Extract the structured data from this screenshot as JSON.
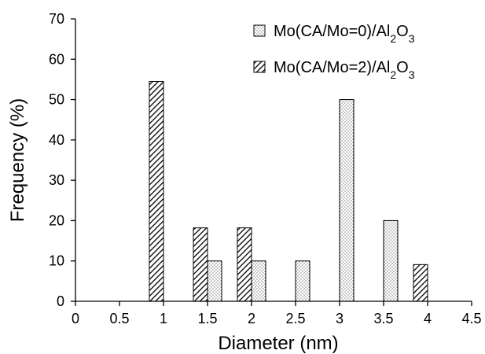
{
  "chart_data": {
    "type": "bar",
    "xlabel": "Diameter (nm)",
    "ylabel": "Frequency (%)",
    "xlim": [
      0,
      4.5
    ],
    "ylim": [
      0,
      70
    ],
    "x_ticks": [
      "0",
      "0.5",
      "1",
      "1.5",
      "2",
      "2.5",
      "3",
      "3.5",
      "4",
      "4.5"
    ],
    "y_ticks": [
      "0",
      "10",
      "20",
      "30",
      "40",
      "50",
      "60",
      "70"
    ],
    "grid": false,
    "legend_position": "top-right",
    "series": [
      {
        "name_parts": [
          "Mo(CA/Mo=0)/Al",
          "2",
          "O",
          "3"
        ],
        "pattern": "dots",
        "x": [
          1.5,
          2.0,
          2.5,
          3.0,
          3.5
        ],
        "values": [
          10,
          10,
          10,
          50,
          20
        ]
      },
      {
        "name_parts": [
          "Mo(CA/Mo=2)/Al",
          "2",
          "O",
          "3"
        ],
        "pattern": "diagonal-hatch",
        "x": [
          1.0,
          1.5,
          2.0,
          4.0
        ],
        "values": [
          54.5,
          18.2,
          18.2,
          9.1
        ]
      }
    ]
  }
}
